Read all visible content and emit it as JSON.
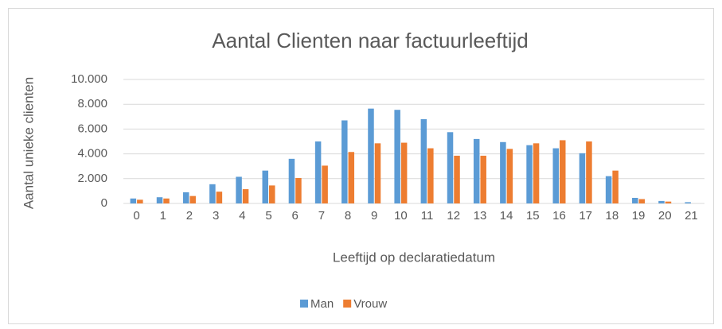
{
  "chart_data": {
    "type": "bar",
    "title": "Aantal Clienten naar factuurleeftijd",
    "xlabel": "Leeftijd op declaratiedatum",
    "ylabel": "Aantal unieke clienten",
    "categories": [
      "0",
      "1",
      "2",
      "3",
      "4",
      "5",
      "6",
      "7",
      "8",
      "9",
      "10",
      "11",
      "12",
      "13",
      "14",
      "15",
      "16",
      "17",
      "18",
      "19",
      "20",
      "21"
    ],
    "series": [
      {
        "name": "Man",
        "color": "#5b9bd5",
        "values": [
          400,
          500,
          900,
          1550,
          2150,
          2650,
          3600,
          5000,
          6700,
          7650,
          7550,
          6800,
          5750,
          5200,
          4950,
          4700,
          4450,
          4050,
          2200,
          450,
          200,
          100
        ]
      },
      {
        "name": "Vrouw",
        "color": "#ed7d31",
        "values": [
          300,
          400,
          600,
          950,
          1150,
          1450,
          2050,
          3050,
          4150,
          4850,
          4900,
          4450,
          3850,
          3850,
          4400,
          4850,
          5100,
          5000,
          2650,
          350,
          150,
          0
        ]
      }
    ],
    "ylim": [
      0,
      10000
    ],
    "yticks": [
      0,
      {
        "value": 2000,
        "label": "2.000"
      },
      {
        "value": 4000,
        "label": "4.000"
      },
      {
        "value": 6000,
        "label": "6.000"
      },
      {
        "value": 8000,
        "label": "8.000"
      },
      {
        "value": 10000,
        "label": "10.000"
      }
    ],
    "grid": true,
    "legend": "bottom"
  }
}
